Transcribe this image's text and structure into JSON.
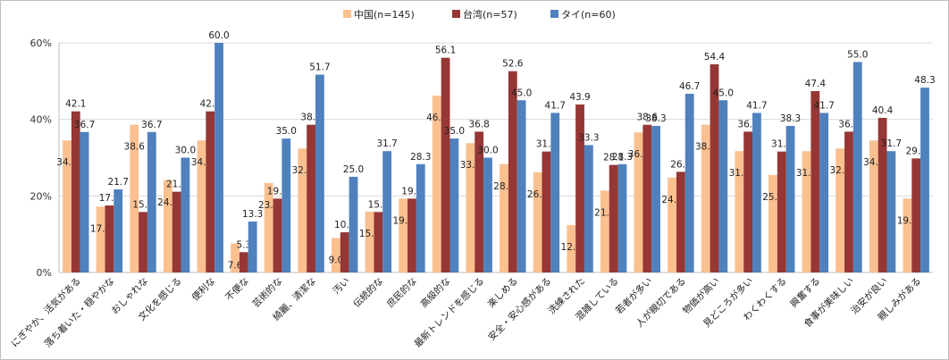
{
  "chart_data": {
    "type": "bar",
    "ylim": [
      0,
      60
    ],
    "y_ticks": [
      "0%",
      "20%",
      "40%",
      "60%"
    ],
    "grid": true,
    "legend_position": "top",
    "categories": [
      "にぎやか、活気がある",
      "落ち着いた・穏やかな",
      "おしゃれな",
      "文化を感じる",
      "便利な",
      "不便な",
      "芸術的な",
      "綺麗、清潔な",
      "汚い",
      "伝統的な",
      "庶民的な",
      "高級的な",
      "最新トレンドを感じる",
      "楽しめる",
      "安全・安心感がある",
      "洗練された",
      "混雑している",
      "若者が多い",
      "人が親切である",
      "物価が高い",
      "見どころが多い",
      "わくわくする",
      "興奮する",
      "食事が美味しい",
      "治安が良い",
      "親しみがある"
    ],
    "series": [
      {
        "name": "中国(n=145)",
        "color": "#FAC090",
        "values": [
          34.5,
          17.2,
          38.6,
          24.1,
          34.5,
          7.6,
          23.4,
          32.4,
          9.0,
          15.9,
          19.3,
          46.2,
          33.8,
          28.3,
          26.2,
          12.4,
          21.4,
          36.6,
          24.8,
          38.6,
          31.7,
          25.5,
          31.7,
          32.4,
          34.5,
          19.3
        ]
      },
      {
        "name": "台湾(n=57)",
        "color": "#953735",
        "values": [
          42.1,
          17.5,
          15.8,
          21.1,
          42.1,
          5.3,
          19.3,
          38.6,
          10.5,
          15.8,
          19.3,
          56.1,
          36.8,
          52.6,
          31.6,
          43.9,
          28.1,
          38.6,
          26.3,
          54.4,
          36.8,
          31.6,
          47.4,
          36.8,
          40.4,
          29.8
        ]
      },
      {
        "name": "タイ(n=60)",
        "color": "#4F81BD",
        "values": [
          36.7,
          21.7,
          36.7,
          30.0,
          60.0,
          13.3,
          35.0,
          51.7,
          25.0,
          31.7,
          28.3,
          35.0,
          30.0,
          45.0,
          41.7,
          33.3,
          28.3,
          38.3,
          46.7,
          45.0,
          41.7,
          38.3,
          41.7,
          55.0,
          31.7,
          48.3
        ]
      }
    ]
  }
}
